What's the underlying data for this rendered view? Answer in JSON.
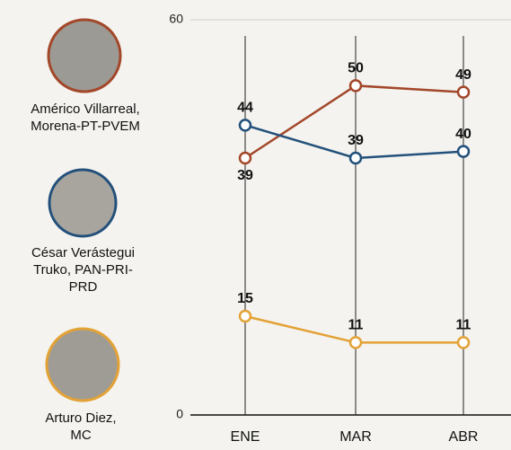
{
  "chart_data": {
    "type": "line",
    "categories": [
      "ENE",
      "MAR",
      "ABR"
    ],
    "series": [
      {
        "name": "Américo Villarreal, Morena-PT-PVEM",
        "color": "#a3472a",
        "values": [
          39,
          50,
          49
        ]
      },
      {
        "name": "César Verástegui Truko, PAN-PRI-PRD",
        "color": "#22507a",
        "values": [
          44,
          39,
          40
        ]
      },
      {
        "name": "Arturo Diez, MC",
        "color": "#e3a236",
        "values": [
          15,
          11,
          11
        ]
      }
    ],
    "ylim": [
      0,
      60
    ],
    "yticks": [
      0,
      60
    ],
    "grid": true
  }
}
